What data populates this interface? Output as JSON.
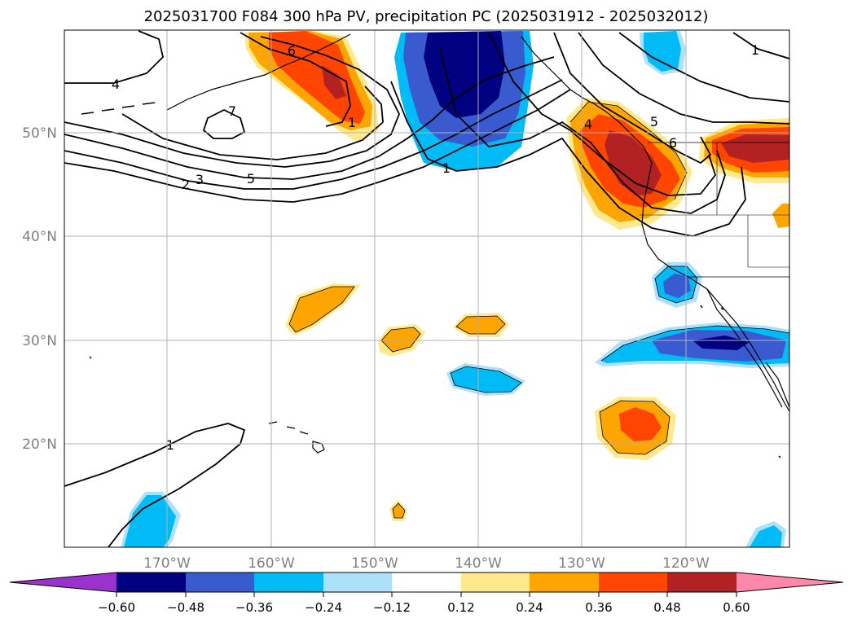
{
  "title": "2025031700 F084 300 hPa PV, precipitation PC (2025031912 - 2025032012)",
  "map": {
    "lat_labels": [
      "50°N",
      "40°N",
      "30°N",
      "20°N"
    ],
    "lon_labels": [
      "170°W",
      "160°W",
      "150°W",
      "140°W",
      "130°W",
      "120°W"
    ],
    "grid": true
  },
  "pv_contour_labels": [
    "4",
    "7",
    "2",
    "3",
    "5",
    "6",
    "1",
    "4",
    "5",
    "6",
    "1",
    "1",
    "1"
  ],
  "colorbar": {
    "tick_labels": [
      "−0.60",
      "−0.48",
      "−0.36",
      "−0.24",
      "−0.12",
      "0.12",
      "0.24",
      "0.36",
      "0.48",
      "0.60"
    ],
    "colors": [
      "#9933cc",
      "#000080",
      "#3a5bd0",
      "#00bbf5",
      "#ade0fa",
      "#ffffff",
      "#ffe98c",
      "#ffa500",
      "#ff4500",
      "#b22222",
      "#ff88aa"
    ]
  }
}
